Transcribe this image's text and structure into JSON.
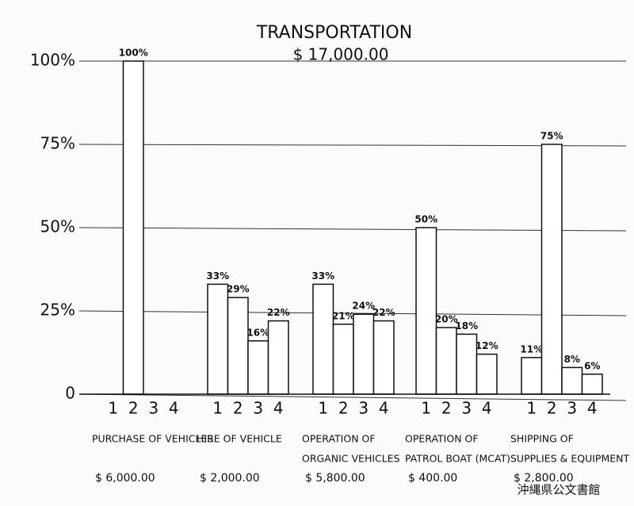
{
  "chart_data": {
    "type": "grouped-bar",
    "title": "TRANSPORTATION",
    "subtitle": "$ 17,000.00",
    "ylim": [
      0,
      100
    ],
    "yticks": [
      {
        "value": 0,
        "label": "0"
      },
      {
        "value": 25,
        "label": "25%"
      },
      {
        "value": 50,
        "label": "50%"
      },
      {
        "value": 75,
        "label": "75%"
      },
      {
        "value": 100,
        "label": "100%"
      }
    ],
    "grid": true,
    "color": "#ffffff",
    "groups": [
      {
        "name": [
          "PURCHASE OF VEHICLES"
        ],
        "amount": "$ 6,000.00",
        "categories": [
          "1",
          "2",
          "3",
          "4"
        ],
        "values": [
          null,
          100,
          null,
          null
        ],
        "value_labels": [
          null,
          "100%",
          null,
          null
        ]
      },
      {
        "name": [
          "HIRE OF VEHICLE"
        ],
        "amount": "$ 2,000.00",
        "categories": [
          "1",
          "2",
          "3",
          "4"
        ],
        "values": [
          33,
          29,
          16,
          22
        ],
        "value_labels": [
          "33%",
          "29%",
          "16%",
          "22%"
        ]
      },
      {
        "name": [
          "OPERATION OF",
          "ORGANIC VEHICLES"
        ],
        "amount": "$ 5,800.00",
        "categories": [
          "1",
          "2",
          "3",
          "4"
        ],
        "values": [
          33,
          21,
          24,
          22
        ],
        "value_labels": [
          "33%",
          "21%",
          "24%",
          "22%"
        ]
      },
      {
        "name": [
          "OPERATION OF",
          "PATROL BOAT (MCAT)"
        ],
        "amount": "$ 400.00",
        "categories": [
          "1",
          "2",
          "3",
          "4"
        ],
        "values": [
          50,
          20,
          18,
          12
        ],
        "value_labels": [
          "50%",
          "20%",
          "18%",
          "12%"
        ]
      },
      {
        "name": [
          "SHIPPING OF",
          "SUPPLIES & EQUIPMENT"
        ],
        "amount": "$ 2,800.00",
        "categories": [
          "1",
          "2",
          "3",
          "4"
        ],
        "values": [
          11,
          75,
          8,
          6
        ],
        "value_labels": [
          "11%",
          "75%",
          "8%",
          "6%"
        ]
      }
    ],
    "watermark": "沖縄県公文書館"
  }
}
